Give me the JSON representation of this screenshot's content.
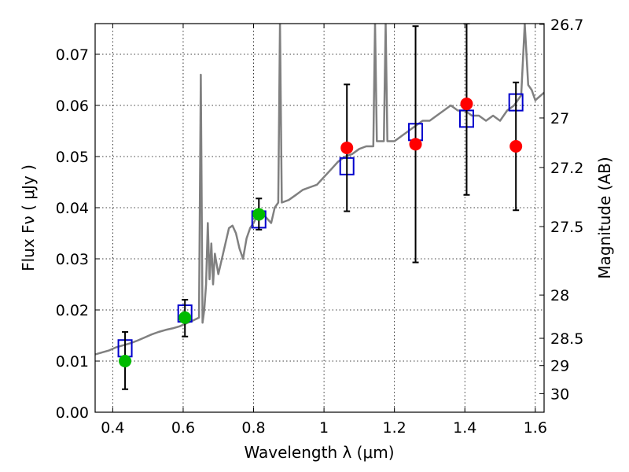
{
  "chart_data": {
    "type": "scatter",
    "xlabel": "Wavelength  λ (μm)",
    "ylabel": "Flux  Fν  ( μJy )",
    "ylabel_right": "Magnitude (AB)",
    "xlim": [
      0.35,
      1.625
    ],
    "ylim": [
      0.0,
      0.076
    ],
    "xticks": [
      0.4,
      0.6,
      0.8,
      1.0,
      1.2,
      1.4,
      1.6
    ],
    "xtick_labels": [
      "0.4",
      "0.6",
      "0.8",
      "1",
      "1.2",
      "1.4",
      "1.6"
    ],
    "yticks": [
      0.0,
      0.01,
      0.02,
      0.03,
      0.04,
      0.05,
      0.06,
      0.07
    ],
    "ytick_labels": [
      "0.00",
      "0.01",
      "0.02",
      "0.03",
      "0.04",
      "0.05",
      "0.06",
      "0.07"
    ],
    "right_ticks": [
      {
        "label": "26.7",
        "mag": 26.7
      },
      {
        "label": "27",
        "mag": 27.0
      },
      {
        "label": "27.2",
        "mag": 27.2
      },
      {
        "label": "27.5",
        "mag": 27.5
      },
      {
        "label": "28",
        "mag": 28.0
      },
      {
        "label": "28.5",
        "mag": 28.5
      },
      {
        "label": "29",
        "mag": 29.0
      },
      {
        "label": "30",
        "mag": 30.0
      }
    ],
    "grid": true,
    "colors": {
      "model": "#808080",
      "model_photometry": "#0000cc",
      "optical_detections": "#00bb00",
      "nir_detections": "#ff0000",
      "error_bars": "#000000"
    },
    "series": [
      {
        "type": "line",
        "points": [
          [
            0.35,
            0.0113
          ],
          [
            0.37,
            0.0117
          ],
          [
            0.39,
            0.0121
          ],
          [
            0.41,
            0.0127
          ],
          [
            0.43,
            0.0131
          ],
          [
            0.45,
            0.0135
          ],
          [
            0.47,
            0.014
          ],
          [
            0.49,
            0.0146
          ],
          [
            0.51,
            0.0152
          ],
          [
            0.53,
            0.0157
          ],
          [
            0.55,
            0.0161
          ],
          [
            0.57,
            0.0164
          ],
          [
            0.59,
            0.0168
          ],
          [
            0.61,
            0.0174
          ],
          [
            0.63,
            0.018
          ],
          [
            0.645,
            0.0185
          ],
          [
            0.65,
            0.066
          ],
          [
            0.655,
            0.0175
          ],
          [
            0.66,
            0.02
          ],
          [
            0.665,
            0.025
          ],
          [
            0.67,
            0.037
          ],
          [
            0.675,
            0.026
          ],
          [
            0.68,
            0.033
          ],
          [
            0.685,
            0.025
          ],
          [
            0.69,
            0.031
          ],
          [
            0.7,
            0.027
          ],
          [
            0.71,
            0.03
          ],
          [
            0.72,
            0.033
          ],
          [
            0.73,
            0.036
          ],
          [
            0.74,
            0.0365
          ],
          [
            0.75,
            0.035
          ],
          [
            0.76,
            0.032
          ],
          [
            0.77,
            0.03
          ],
          [
            0.78,
            0.034
          ],
          [
            0.79,
            0.036
          ],
          [
            0.8,
            0.037
          ],
          [
            0.81,
            0.0385
          ],
          [
            0.83,
            0.0385
          ],
          [
            0.85,
            0.037
          ],
          [
            0.86,
            0.04
          ],
          [
            0.87,
            0.041
          ],
          [
            0.875,
            0.076
          ],
          [
            0.88,
            0.041
          ],
          [
            0.9,
            0.0415
          ],
          [
            0.92,
            0.0425
          ],
          [
            0.94,
            0.0435
          ],
          [
            0.96,
            0.044
          ],
          [
            0.98,
            0.0445
          ],
          [
            1.0,
            0.046
          ],
          [
            1.02,
            0.0475
          ],
          [
            1.04,
            0.049
          ],
          [
            1.06,
            0.05
          ],
          [
            1.08,
            0.0505
          ],
          [
            1.1,
            0.0515
          ],
          [
            1.12,
            0.052
          ],
          [
            1.14,
            0.052
          ],
          [
            1.145,
            0.076
          ],
          [
            1.15,
            0.053
          ],
          [
            1.17,
            0.053
          ],
          [
            1.175,
            0.076
          ],
          [
            1.18,
            0.053
          ],
          [
            1.2,
            0.053
          ],
          [
            1.22,
            0.054
          ],
          [
            1.24,
            0.055
          ],
          [
            1.26,
            0.056
          ],
          [
            1.28,
            0.057
          ],
          [
            1.3,
            0.057
          ],
          [
            1.32,
            0.058
          ],
          [
            1.34,
            0.059
          ],
          [
            1.36,
            0.06
          ],
          [
            1.38,
            0.059
          ],
          [
            1.4,
            0.059
          ],
          [
            1.42,
            0.058
          ],
          [
            1.44,
            0.058
          ],
          [
            1.46,
            0.057
          ],
          [
            1.48,
            0.058
          ],
          [
            1.5,
            0.057
          ],
          [
            1.52,
            0.059
          ],
          [
            1.54,
            0.06
          ],
          [
            1.56,
            0.062
          ],
          [
            1.57,
            0.076
          ],
          [
            1.58,
            0.064
          ],
          [
            1.59,
            0.063
          ],
          [
            1.6,
            0.061
          ],
          [
            1.625,
            0.0625
          ]
        ]
      },
      {
        "type": "square",
        "points": [
          [
            0.435,
            0.0125
          ],
          [
            0.605,
            0.0193
          ],
          [
            0.815,
            0.0377
          ],
          [
            1.065,
            0.0481
          ],
          [
            1.26,
            0.0548
          ],
          [
            1.405,
            0.0574
          ],
          [
            1.545,
            0.0606
          ]
        ]
      },
      {
        "type": "point",
        "points": [
          [
            0.435,
            0.01
          ],
          [
            0.605,
            0.0185
          ],
          [
            0.815,
            0.0387
          ]
        ]
      },
      {
        "type": "point",
        "points": [
          [
            1.065,
            0.0517
          ],
          [
            1.26,
            0.0524
          ],
          [
            1.405,
            0.0603
          ],
          [
            1.545,
            0.052
          ]
        ]
      },
      {
        "type": "errorbar",
        "points": [
          [
            0.435,
            0.0045,
            0.0157
          ],
          [
            0.605,
            0.0148,
            0.022
          ],
          [
            0.815,
            0.0357,
            0.0418
          ],
          [
            1.065,
            0.0393,
            0.0641
          ],
          [
            1.26,
            0.0293,
            0.0755
          ],
          [
            1.405,
            0.0425,
            0.076
          ],
          [
            1.545,
            0.0395,
            0.0645
          ]
        ]
      }
    ]
  }
}
